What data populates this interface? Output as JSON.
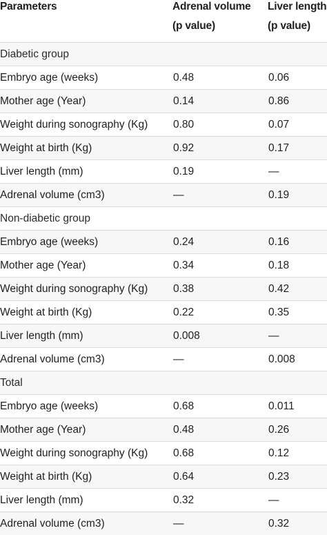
{
  "header": {
    "col1": "Parameters",
    "col2_line1": "Adrenal volume",
    "col2_line2": "(p value)",
    "col3_line1": "Liver length",
    "col3_line2": "(p value)"
  },
  "rows": [
    {
      "type": "group",
      "label": "Diabetic group"
    },
    {
      "label": "Embryo age (weeks)",
      "adrenal": "0.48",
      "liver": "0.06"
    },
    {
      "label": "Mother age (Year)",
      "adrenal": "0.14",
      "liver": "0.86"
    },
    {
      "label": "Weight during sonography (Kg)",
      "adrenal": "0.80",
      "liver": "0.07"
    },
    {
      "label": "Weight at birth (Kg)",
      "adrenal": "0.92",
      "liver": "0.17"
    },
    {
      "label": "Liver length (mm)",
      "adrenal": "0.19",
      "liver": "—"
    },
    {
      "label": "Adrenal volume (cm3)",
      "adrenal": "—",
      "liver": "0.19"
    },
    {
      "type": "group",
      "label": "Non-diabetic group"
    },
    {
      "label": "Embryo age (weeks)",
      "adrenal": "0.24",
      "liver": "0.16"
    },
    {
      "label": "Mother age (Year)",
      "adrenal": "0.34",
      "liver": "0.18"
    },
    {
      "label": "Weight during sonography (Kg)",
      "adrenal": "0.38",
      "liver": "0.42"
    },
    {
      "label": "Weight at birth (Kg)",
      "adrenal": "0.22",
      "liver": "0.35"
    },
    {
      "label": "Liver length (mm)",
      "adrenal": "0.008",
      "liver": "—"
    },
    {
      "label": "Adrenal volume (cm3)",
      "adrenal": "—",
      "liver": "0.008"
    },
    {
      "type": "group",
      "label": "Total"
    },
    {
      "label": "Embryo age (weeks)",
      "adrenal": "0.68",
      "liver": "0.011"
    },
    {
      "label": "Mother age (Year)",
      "adrenal": "0.48",
      "liver": "0.26"
    },
    {
      "label": "Weight during sonography (Kg)",
      "adrenal": "0.68",
      "liver": "0.12"
    },
    {
      "label": "Weight at birth (Kg)",
      "adrenal": "0.64",
      "liver": "0.23"
    },
    {
      "label": "Liver length (mm)",
      "adrenal": "0.32",
      "liver": "—"
    },
    {
      "label": "Adrenal volume (cm3)",
      "adrenal": "—",
      "liver": "0.32"
    }
  ]
}
